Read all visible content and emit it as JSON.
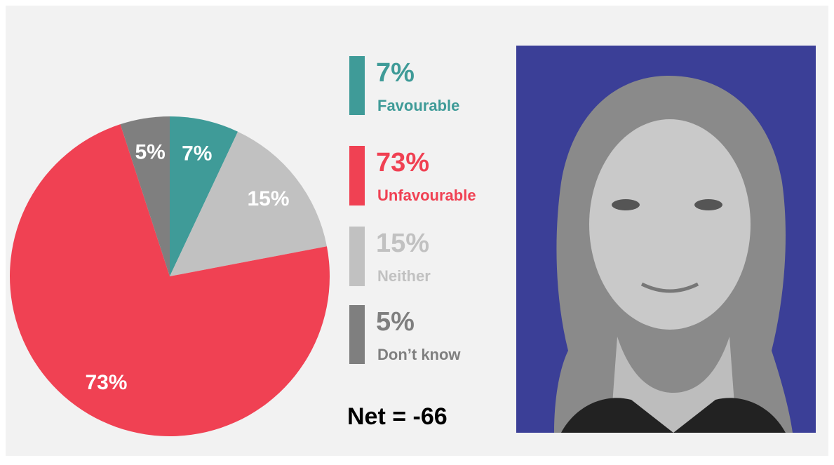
{
  "chart_data": {
    "type": "pie",
    "categories": [
      "Favourable",
      "Neither",
      "Unfavourable",
      "Don’t know"
    ],
    "values": [
      7,
      15,
      73,
      5
    ],
    "value_labels": [
      "7%",
      "15%",
      "73%",
      "5%"
    ],
    "colors": [
      "#3f9b98",
      "#c1c1c1",
      "#f04153",
      "#7f7f7f"
    ],
    "annotation": "Net = -66"
  }
}
